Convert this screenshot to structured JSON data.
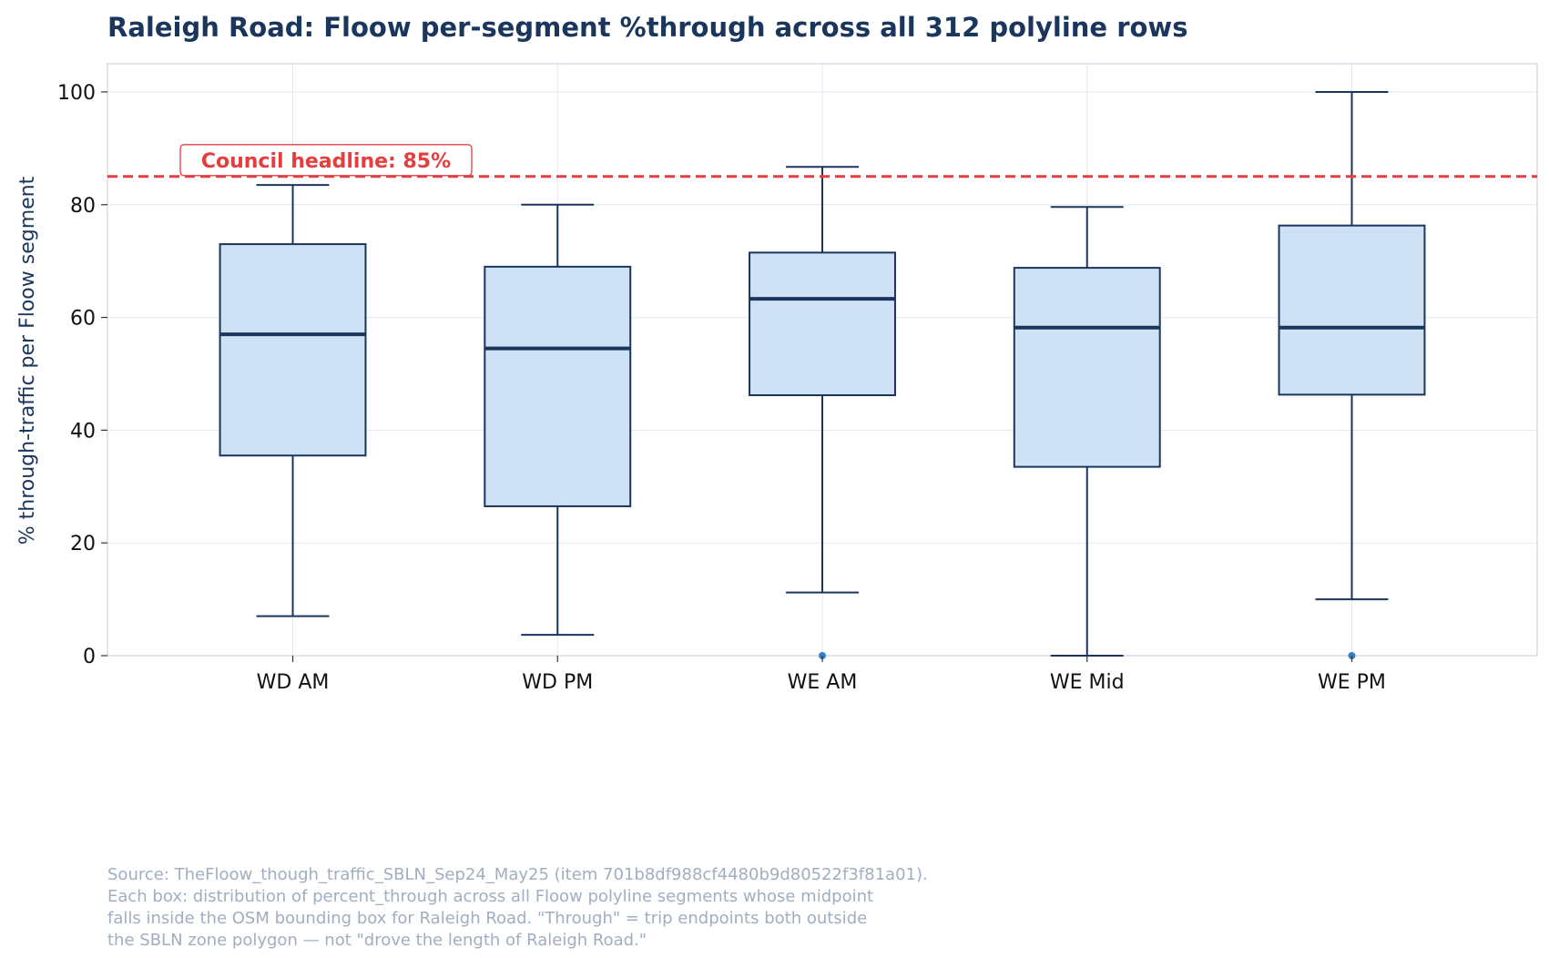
{
  "chart_data": {
    "type": "box",
    "title": "Raleigh Road: Floow per-segment %through across all 312 polyline rows",
    "xlabel": "",
    "ylabel": "% through-traffic per Floow segment",
    "ylim": [
      0,
      105
    ],
    "yticks": [
      0,
      20,
      40,
      60,
      80,
      100
    ],
    "grid": true,
    "categories": [
      "WD AM",
      "WD PM",
      "WE AM",
      "WE Mid",
      "WE PM"
    ],
    "boxes": [
      {
        "category": "WD AM",
        "whisker_low": 7,
        "q1": 35.5,
        "median": 57,
        "q3": 73,
        "whisker_high": 83.5,
        "outliers": []
      },
      {
        "category": "WD PM",
        "whisker_low": 3.7,
        "q1": 26.5,
        "median": 54.5,
        "q3": 69,
        "whisker_high": 80,
        "outliers": []
      },
      {
        "category": "WE AM",
        "whisker_low": 11.2,
        "q1": 46.2,
        "median": 63.3,
        "q3": 71.5,
        "whisker_high": 86.7,
        "outliers": [
          0
        ]
      },
      {
        "category": "WE Mid",
        "whisker_low": 0,
        "q1": 33.5,
        "median": 58.2,
        "q3": 68.8,
        "whisker_high": 79.6,
        "outliers": []
      },
      {
        "category": "WE PM",
        "whisker_low": 10,
        "q1": 46.3,
        "median": 58.2,
        "q3": 76.3,
        "whisker_high": 100,
        "outliers": [
          0
        ]
      }
    ],
    "reference_line": {
      "value": 85,
      "label": "Council headline: 85%",
      "color": "#e53e3e",
      "style": "dashed"
    },
    "colors": {
      "box_fill": "#cfe1f5",
      "box_edge": "#1a365d",
      "median": "#1a365d",
      "outlier": "#3182ce",
      "grid": "#e2e8f0",
      "frame": "#cbd5e0"
    }
  },
  "source_note": [
    "Source: TheFloow_though_traffic_SBLN_Sep24_May25 (item 701b8df988cf4480b9d80522f3f81a01).",
    "Each box: distribution of percent_through across all Floow polyline segments whose midpoint",
    "falls inside the OSM bounding box for Raleigh Road. \"Through\" = trip endpoints both outside",
    "the SBLN zone polygon — not \"drove the length of Raleigh Road.\""
  ]
}
